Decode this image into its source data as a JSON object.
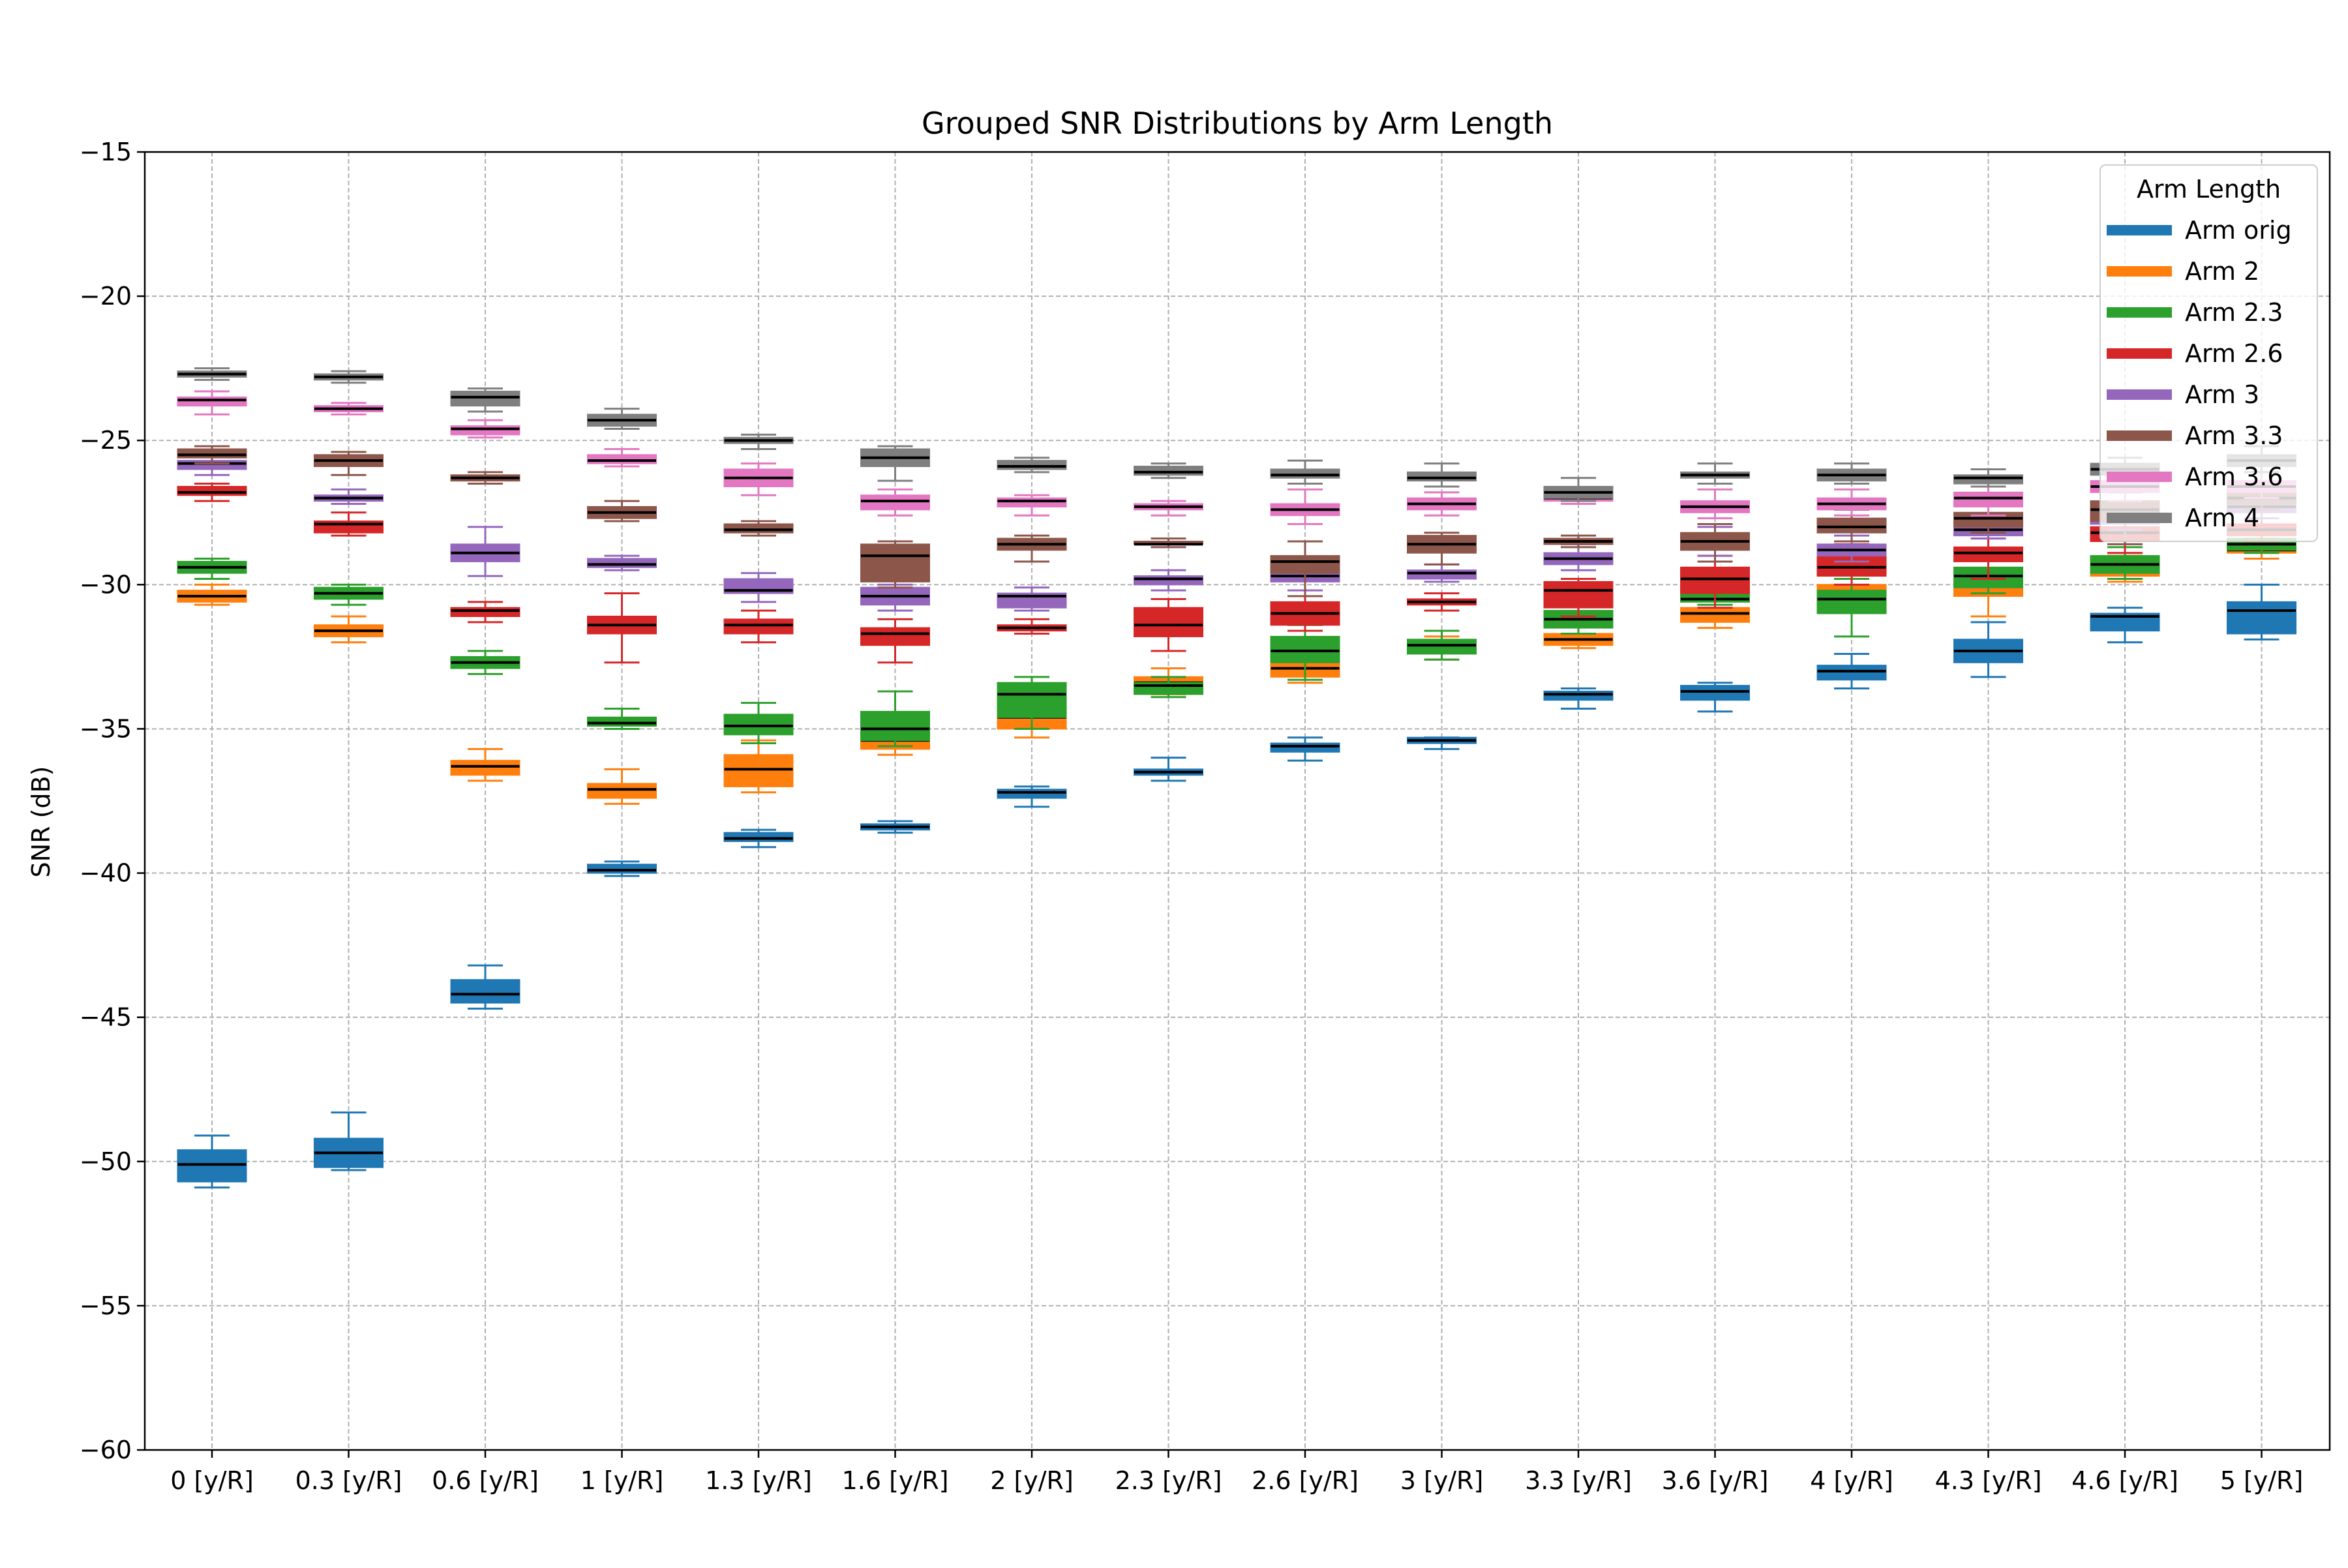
{
  "chart_data": {
    "type": "boxplot",
    "title": "Grouped SNR Distributions by Arm Length",
    "xlabel": "",
    "ylabel": "SNR (dB)",
    "ylim": [
      -60,
      -15
    ],
    "yticks": [
      "−60",
      "−55",
      "−50",
      "−45",
      "−40",
      "−35",
      "−30",
      "−25",
      "−20",
      "−15"
    ],
    "ytick_values": [
      -60,
      -55,
      -50,
      -45,
      -40,
      -35,
      -30,
      -25,
      -20,
      -15
    ],
    "grid": true,
    "categories": [
      "0 [y/R]",
      "0.3 [y/R]",
      "0.6 [y/R]",
      "1 [y/R]",
      "1.3 [y/R]",
      "1.6 [y/R]",
      "2 [y/R]",
      "2.3 [y/R]",
      "2.6 [y/R]",
      "3 [y/R]",
      "3.3 [y/R]",
      "3.6 [y/R]",
      "4 [y/R]",
      "4.3 [y/R]",
      "4.6 [y/R]",
      "5 [y/R]"
    ],
    "legend": {
      "title": "Arm Length",
      "placement": "top-right"
    },
    "series": [
      {
        "name": "Arm orig",
        "color": "#1f77b4",
        "boxes": [
          [
            -50.9,
            -50.7,
            -50.1,
            -49.6,
            -49.1
          ],
          [
            -50.3,
            -50.2,
            -49.7,
            -49.2,
            -48.3
          ],
          [
            -44.7,
            -44.5,
            -44.2,
            -43.7,
            -43.2
          ],
          [
            -40.1,
            -40.0,
            -39.9,
            -39.7,
            -39.6
          ],
          [
            -39.1,
            -38.9,
            -38.8,
            -38.6,
            -38.5
          ],
          [
            -38.6,
            -38.5,
            -38.4,
            -38.3,
            -38.2
          ],
          [
            -37.7,
            -37.4,
            -37.2,
            -37.1,
            -37.0
          ],
          [
            -36.8,
            -36.6,
            -36.5,
            -36.4,
            -36.0
          ],
          [
            -36.1,
            -35.8,
            -35.6,
            -35.5,
            -35.3
          ],
          [
            -35.7,
            -35.5,
            -35.4,
            -35.3,
            -35.3
          ],
          [
            -34.3,
            -34.0,
            -33.8,
            -33.7,
            -33.6
          ],
          [
            -34.4,
            -34.0,
            -33.7,
            -33.5,
            -33.4
          ],
          [
            -33.6,
            -33.3,
            -33.0,
            -32.8,
            -32.4
          ],
          [
            -33.2,
            -32.7,
            -32.3,
            -31.9,
            -31.3
          ],
          [
            -32.0,
            -31.6,
            -31.1,
            -31.0,
            -30.8
          ],
          [
            -31.9,
            -31.7,
            -30.9,
            -30.6,
            -30.0
          ]
        ]
      },
      {
        "name": "Arm 2",
        "color": "#ff7f0e",
        "boxes": [
          [
            -30.7,
            -30.6,
            -30.4,
            -30.2,
            -30.0
          ],
          [
            -32.0,
            -31.8,
            -31.6,
            -31.4,
            -31.1
          ],
          [
            -36.8,
            -36.6,
            -36.3,
            -36.1,
            -35.7
          ],
          [
            -37.6,
            -37.4,
            -37.1,
            -36.9,
            -36.4
          ],
          [
            -37.2,
            -37.0,
            -36.4,
            -35.9,
            -35.4
          ],
          [
            -35.9,
            -35.7,
            -35.4,
            -35.1,
            -34.9
          ],
          [
            -35.3,
            -35.0,
            -34.6,
            -34.3,
            -33.9
          ],
          [
            -33.8,
            -33.6,
            -33.4,
            -33.2,
            -32.9
          ],
          [
            -33.4,
            -33.2,
            -32.9,
            -32.6,
            -32.2
          ],
          [
            -32.6,
            -32.4,
            -32.2,
            -32.0,
            -31.8
          ],
          [
            -32.2,
            -32.1,
            -31.9,
            -31.7,
            -31.4
          ],
          [
            -31.5,
            -31.3,
            -31.0,
            -30.8,
            -30.5
          ],
          [
            -30.8,
            -30.6,
            -30.3,
            -30.0,
            -29.8
          ],
          [
            -31.1,
            -30.4,
            -30.0,
            -29.6,
            -29.1
          ],
          [
            -29.9,
            -29.7,
            -29.5,
            -29.3,
            -29.0
          ],
          [
            -29.1,
            -28.9,
            -28.8,
            -28.6,
            -28.4
          ]
        ]
      },
      {
        "name": "Arm 2.3",
        "color": "#2ca02c",
        "boxes": [
          [
            -29.8,
            -29.6,
            -29.4,
            -29.2,
            -29.1
          ],
          [
            -30.7,
            -30.5,
            -30.3,
            -30.1,
            -30.0
          ],
          [
            -33.1,
            -32.9,
            -32.7,
            -32.5,
            -32.3
          ],
          [
            -35.0,
            -34.9,
            -34.8,
            -34.6,
            -34.3
          ],
          [
            -35.5,
            -35.2,
            -34.9,
            -34.5,
            -34.1
          ],
          [
            -35.6,
            -35.4,
            -35.0,
            -34.4,
            -33.7
          ],
          [
            -35.0,
            -34.6,
            -33.8,
            -33.4,
            -33.2
          ],
          [
            -33.9,
            -33.8,
            -33.5,
            -33.4,
            -33.2
          ],
          [
            -33.3,
            -32.7,
            -32.3,
            -31.8,
            -31.4
          ],
          [
            -32.6,
            -32.4,
            -32.1,
            -31.9,
            -31.6
          ],
          [
            -31.7,
            -31.5,
            -31.2,
            -30.9,
            -30.6
          ],
          [
            -30.7,
            -30.6,
            -30.5,
            -30.3,
            -30.2
          ],
          [
            -31.8,
            -31.0,
            -30.5,
            -30.2,
            -29.8
          ],
          [
            -30.3,
            -30.1,
            -29.7,
            -29.4,
            -29.1
          ],
          [
            -29.8,
            -29.6,
            -29.3,
            -29.0,
            -28.7
          ],
          [
            -28.9,
            -28.8,
            -28.6,
            -28.4,
            -28.2
          ]
        ]
      },
      {
        "name": "Arm 2.6",
        "color": "#d62728",
        "boxes": [
          [
            -27.1,
            -26.9,
            -26.8,
            -26.6,
            -26.5
          ],
          [
            -28.3,
            -28.2,
            -27.9,
            -27.8,
            -27.5
          ],
          [
            -31.3,
            -31.1,
            -30.9,
            -30.8,
            -30.6
          ],
          [
            -32.7,
            -31.7,
            -31.4,
            -31.1,
            -30.3
          ],
          [
            -32.0,
            -31.7,
            -31.4,
            -31.2,
            -30.9
          ],
          [
            -32.7,
            -32.1,
            -31.7,
            -31.5,
            -31.2
          ],
          [
            -31.7,
            -31.6,
            -31.5,
            -31.4,
            -31.2
          ],
          [
            -32.3,
            -31.8,
            -31.4,
            -30.8,
            -30.5
          ],
          [
            -31.6,
            -31.4,
            -31.0,
            -30.6,
            -30.4
          ],
          [
            -30.9,
            -30.7,
            -30.6,
            -30.5,
            -30.3
          ],
          [
            -31.1,
            -30.8,
            -30.2,
            -29.9,
            -29.8
          ],
          [
            -30.8,
            -30.3,
            -29.8,
            -29.4,
            -29.0
          ],
          [
            -30.0,
            -29.7,
            -29.4,
            -28.9,
            -28.6
          ],
          [
            -29.8,
            -29.2,
            -28.9,
            -28.7,
            -28.4
          ],
          [
            -28.9,
            -28.5,
            -28.2,
            -28.0,
            -27.6
          ],
          [
            -28.5,
            -28.3,
            -28.1,
            -27.9,
            -27.7
          ]
        ]
      },
      {
        "name": "Arm 3",
        "color": "#9467bd",
        "boxes": [
          [
            -26.2,
            -26.0,
            -25.8,
            -25.7,
            -25.5
          ],
          [
            -27.2,
            -27.1,
            -27.0,
            -26.9,
            -26.7
          ],
          [
            -29.7,
            -29.2,
            -28.9,
            -28.6,
            -28.0
          ],
          [
            -29.5,
            -29.4,
            -29.3,
            -29.1,
            -29.0
          ],
          [
            -30.6,
            -30.3,
            -30.2,
            -29.8,
            -29.6
          ],
          [
            -30.9,
            -30.7,
            -30.4,
            -30.1,
            -30.0
          ],
          [
            -30.9,
            -30.8,
            -30.4,
            -30.3,
            -30.1
          ],
          [
            -30.2,
            -30.0,
            -29.8,
            -29.7,
            -29.5
          ],
          [
            -30.2,
            -29.9,
            -29.7,
            -29.5,
            -29.2
          ],
          [
            -29.9,
            -29.8,
            -29.6,
            -29.5,
            -29.3
          ],
          [
            -29.5,
            -29.3,
            -29.1,
            -28.9,
            -28.6
          ],
          [
            -29.0,
            -28.8,
            -28.6,
            -28.3,
            -28.0
          ],
          [
            -29.2,
            -29.0,
            -28.8,
            -28.6,
            -28.3
          ],
          [
            -28.4,
            -28.3,
            -28.1,
            -27.9,
            -27.6
          ],
          [
            -28.1,
            -27.9,
            -27.7,
            -27.5,
            -27.2
          ],
          [
            -27.7,
            -27.5,
            -27.3,
            -27.1,
            -26.9
          ]
        ]
      },
      {
        "name": "Arm 3.3",
        "color": "#8c564b",
        "boxes": [
          [
            -25.8,
            -25.6,
            -25.5,
            -25.3,
            -25.2
          ],
          [
            -26.2,
            -25.9,
            -25.7,
            -25.5,
            -25.4
          ],
          [
            -26.5,
            -26.4,
            -26.3,
            -26.2,
            -26.1
          ],
          [
            -27.8,
            -27.7,
            -27.5,
            -27.3,
            -27.1
          ],
          [
            -28.3,
            -28.2,
            -28.1,
            -27.9,
            -27.8
          ],
          [
            -30.1,
            -29.9,
            -29.0,
            -28.6,
            -28.5
          ],
          [
            -29.2,
            -28.8,
            -28.6,
            -28.4,
            -28.3
          ],
          [
            -28.7,
            -28.6,
            -28.6,
            -28.5,
            -28.4
          ],
          [
            -30.4,
            -29.6,
            -29.2,
            -29.0,
            -28.5
          ],
          [
            -29.3,
            -28.9,
            -28.6,
            -28.3,
            -28.2
          ],
          [
            -28.7,
            -28.6,
            -28.5,
            -28.4,
            -28.3
          ],
          [
            -29.2,
            -28.8,
            -28.5,
            -28.2,
            -27.9
          ],
          [
            -28.5,
            -28.2,
            -28.0,
            -27.7,
            -27.4
          ],
          [
            -28.2,
            -28.0,
            -27.7,
            -27.5,
            -27.1
          ],
          [
            -28.6,
            -27.8,
            -27.4,
            -27.1,
            -26.8
          ],
          [
            -27.4,
            -27.2,
            -27.0,
            -26.8,
            -26.5
          ]
        ]
      },
      {
        "name": "Arm 3.6",
        "color": "#e377c2",
        "boxes": [
          [
            -24.1,
            -23.8,
            -23.6,
            -23.5,
            -23.3
          ],
          [
            -24.1,
            -24.0,
            -23.9,
            -23.8,
            -23.7
          ],
          [
            -24.9,
            -24.8,
            -24.6,
            -24.5,
            -24.3
          ],
          [
            -25.9,
            -25.8,
            -25.7,
            -25.5,
            -25.3
          ],
          [
            -26.9,
            -26.6,
            -26.3,
            -26.0,
            -25.8
          ],
          [
            -27.6,
            -27.4,
            -27.1,
            -26.9,
            -26.7
          ],
          [
            -27.6,
            -27.3,
            -27.1,
            -27.0,
            -26.9
          ],
          [
            -27.6,
            -27.4,
            -27.3,
            -27.2,
            -27.1
          ],
          [
            -27.9,
            -27.6,
            -27.4,
            -27.2,
            -26.7
          ],
          [
            -27.6,
            -27.4,
            -27.2,
            -27.0,
            -26.8
          ],
          [
            -27.2,
            -27.1,
            -27.0,
            -26.9,
            -26.7
          ],
          [
            -27.7,
            -27.5,
            -27.3,
            -27.1,
            -26.7
          ],
          [
            -27.6,
            -27.4,
            -27.2,
            -27.0,
            -26.7
          ],
          [
            -27.6,
            -27.3,
            -27.0,
            -26.8,
            -26.6
          ],
          [
            -27.1,
            -26.8,
            -26.6,
            -26.4,
            -26.2
          ],
          [
            -27.0,
            -26.8,
            -26.6,
            -26.4,
            -26.1
          ]
        ]
      },
      {
        "name": "Arm 4",
        "color": "#7f7f7f",
        "boxes": [
          [
            -22.9,
            -22.8,
            -22.7,
            -22.6,
            -22.5
          ],
          [
            -23.0,
            -22.9,
            -22.8,
            -22.7,
            -22.6
          ],
          [
            -24.0,
            -23.8,
            -23.5,
            -23.3,
            -23.2
          ],
          [
            -24.6,
            -24.5,
            -24.3,
            -24.1,
            -23.9
          ],
          [
            -25.3,
            -25.1,
            -25.0,
            -24.9,
            -24.8
          ],
          [
            -26.4,
            -25.9,
            -25.6,
            -25.3,
            -25.2
          ],
          [
            -26.1,
            -26.0,
            -25.9,
            -25.7,
            -25.6
          ],
          [
            -26.3,
            -26.2,
            -26.1,
            -25.9,
            -25.8
          ],
          [
            -26.5,
            -26.3,
            -26.2,
            -26.0,
            -25.7
          ],
          [
            -26.6,
            -26.4,
            -26.3,
            -26.1,
            -25.8
          ],
          [
            -27.1,
            -27.0,
            -26.8,
            -26.6,
            -26.3
          ],
          [
            -26.5,
            -26.3,
            -26.2,
            -26.1,
            -25.8
          ],
          [
            -26.5,
            -26.4,
            -26.2,
            -26.0,
            -25.8
          ],
          [
            -26.6,
            -26.5,
            -26.3,
            -26.2,
            -26.0
          ],
          [
            -26.3,
            -26.2,
            -26.0,
            -25.8,
            -25.6
          ],
          [
            -26.1,
            -25.9,
            -25.7,
            -25.5,
            -25.2
          ]
        ]
      }
    ],
    "box_stat_order": [
      "whisker_low",
      "q1",
      "median",
      "q3",
      "whisker_high"
    ]
  }
}
